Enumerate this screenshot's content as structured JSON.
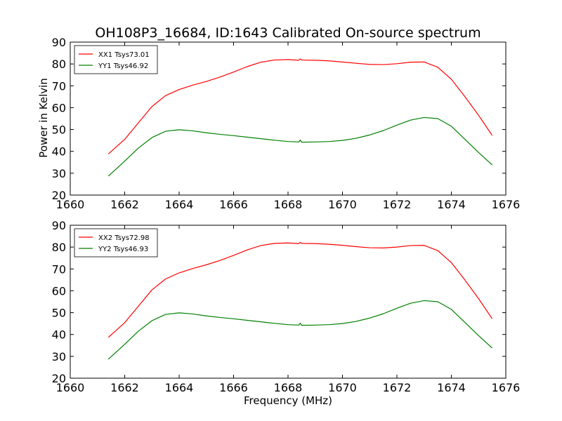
{
  "chart_data": [
    {
      "type": "line",
      "title": "OH108P3_16684, ID:1643 Calibrated On-source spectrum",
      "xlabel": "",
      "ylabel": "Power in Kelvin",
      "xlim": [
        1660,
        1676
      ],
      "ylim": [
        20,
        90
      ],
      "xticks": [
        1660,
        1662,
        1664,
        1666,
        1668,
        1670,
        1672,
        1674,
        1676
      ],
      "yticks": [
        20,
        30,
        40,
        50,
        60,
        70,
        80,
        90
      ],
      "grid": false,
      "legend_position": "top-left",
      "series": [
        {
          "name": "XX1 Tsys73.01",
          "color": "#ff0000",
          "x": [
            1661.4,
            1662.0,
            1662.5,
            1663.0,
            1663.5,
            1664.0,
            1664.5,
            1665.0,
            1665.5,
            1666.0,
            1666.5,
            1667.0,
            1667.5,
            1668.0,
            1668.4,
            1668.45,
            1668.5,
            1669.0,
            1669.5,
            1670.0,
            1670.5,
            1671.0,
            1671.5,
            1672.0,
            1672.5,
            1673.0,
            1673.5,
            1674.0,
            1674.5,
            1675.0,
            1675.5
          ],
          "y": [
            38.8,
            45.5,
            53.0,
            60.5,
            65.5,
            68.3,
            70.3,
            72.0,
            74.0,
            76.3,
            78.8,
            80.8,
            81.8,
            82.0,
            81.7,
            82.3,
            81.8,
            81.7,
            81.4,
            80.9,
            80.3,
            79.8,
            79.7,
            80.1,
            80.8,
            80.9,
            78.5,
            73.0,
            65.0,
            56.5,
            47.3
          ]
        },
        {
          "name": "YY1 Tsys46.92",
          "color": "#008000",
          "x": [
            1661.4,
            1662.0,
            1662.5,
            1663.0,
            1663.5,
            1664.0,
            1664.5,
            1665.0,
            1665.5,
            1666.0,
            1666.5,
            1667.0,
            1667.5,
            1668.0,
            1668.4,
            1668.45,
            1668.5,
            1669.0,
            1669.5,
            1670.0,
            1670.5,
            1671.0,
            1671.5,
            1672.0,
            1672.5,
            1673.0,
            1673.5,
            1674.0,
            1674.5,
            1675.0,
            1675.5
          ],
          "y": [
            28.7,
            35.5,
            41.5,
            46.3,
            49.2,
            49.9,
            49.4,
            48.5,
            47.8,
            47.2,
            46.5,
            45.8,
            45.1,
            44.5,
            44.3,
            45.2,
            44.2,
            44.3,
            44.5,
            45.0,
            46.0,
            47.5,
            49.5,
            52.0,
            54.3,
            55.5,
            55.0,
            51.5,
            45.5,
            39.5,
            33.8
          ]
        }
      ]
    },
    {
      "type": "line",
      "title": "",
      "xlabel": "Frequency (MHz)",
      "ylabel": "",
      "xlim": [
        1660,
        1676
      ],
      "ylim": [
        20,
        90
      ],
      "xticks": [
        1660,
        1662,
        1664,
        1666,
        1668,
        1670,
        1672,
        1674,
        1676
      ],
      "yticks": [
        20,
        30,
        40,
        50,
        60,
        70,
        80,
        90
      ],
      "grid": false,
      "legend_position": "top-left",
      "series": [
        {
          "name": "XX2 Tsys72.98",
          "color": "#ff0000",
          "x": [
            1661.4,
            1662.0,
            1662.5,
            1663.0,
            1663.5,
            1664.0,
            1664.5,
            1665.0,
            1665.5,
            1666.0,
            1666.5,
            1667.0,
            1667.5,
            1668.0,
            1668.4,
            1668.45,
            1668.5,
            1669.0,
            1669.5,
            1670.0,
            1670.5,
            1671.0,
            1671.5,
            1672.0,
            1672.5,
            1673.0,
            1673.5,
            1674.0,
            1674.5,
            1675.0,
            1675.5
          ],
          "y": [
            38.7,
            45.4,
            52.9,
            60.4,
            65.4,
            68.2,
            70.2,
            71.9,
            73.9,
            76.2,
            78.7,
            80.7,
            81.7,
            81.9,
            81.6,
            82.2,
            81.7,
            81.6,
            81.3,
            80.8,
            80.2,
            79.7,
            79.6,
            80.0,
            80.7,
            80.8,
            78.4,
            72.9,
            64.9,
            56.4,
            47.2
          ]
        },
        {
          "name": "YY2 Tsys46.93",
          "color": "#008000",
          "x": [
            1661.4,
            1662.0,
            1662.5,
            1663.0,
            1663.5,
            1664.0,
            1664.5,
            1665.0,
            1665.5,
            1666.0,
            1666.5,
            1667.0,
            1667.5,
            1668.0,
            1668.4,
            1668.45,
            1668.5,
            1669.0,
            1669.5,
            1670.0,
            1670.5,
            1671.0,
            1671.5,
            1672.0,
            1672.5,
            1673.0,
            1673.5,
            1674.0,
            1674.5,
            1675.0,
            1675.5
          ],
          "y": [
            28.7,
            35.5,
            41.5,
            46.3,
            49.2,
            49.9,
            49.4,
            48.5,
            47.8,
            47.2,
            46.5,
            45.8,
            45.1,
            44.5,
            44.3,
            45.2,
            44.2,
            44.3,
            44.5,
            45.0,
            46.0,
            47.5,
            49.5,
            52.0,
            54.3,
            55.5,
            55.0,
            51.5,
            45.5,
            39.5,
            33.8
          ]
        }
      ]
    }
  ]
}
